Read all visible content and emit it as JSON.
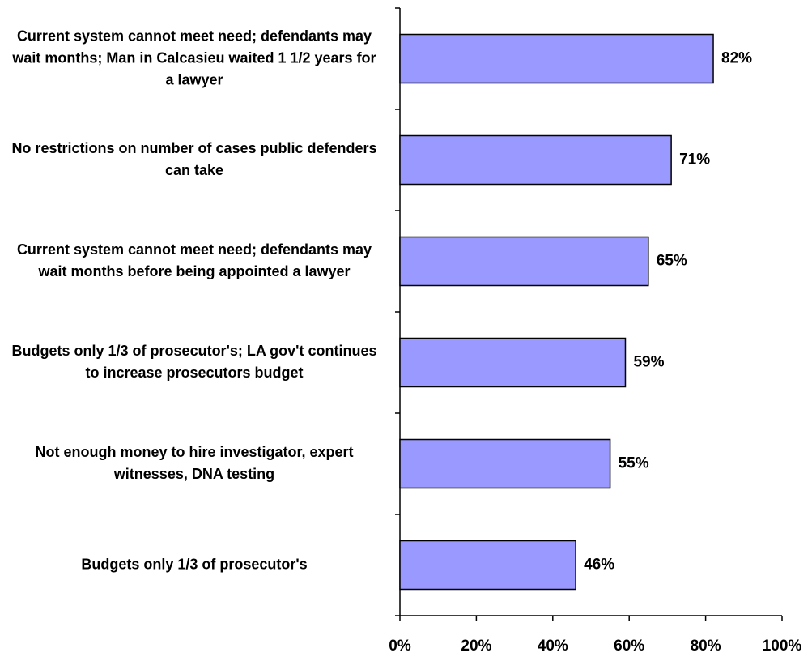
{
  "chart_data": {
    "type": "bar",
    "orientation": "horizontal",
    "categories": [
      "Current system cannot meet need; defendants may wait months; Man in Calcasieu waited 1 1/2 years for a lawyer",
      "No restrictions on number of cases public defenders can take",
      "Current system cannot meet need; defendants may wait months before being appointed a lawyer",
      "Budgets only 1/3 of prosecutor's; LA gov't continues to increase prosecutors budget",
      "Not enough money to hire investigator, expert witnesses, DNA testing",
      "Budgets only 1/3 of prosecutor's"
    ],
    "values": [
      82,
      71,
      65,
      59,
      55,
      46
    ],
    "value_labels": [
      "82%",
      "71%",
      "65%",
      "59%",
      "55%",
      "46%"
    ],
    "color": "#9999ff",
    "xlim": [
      0,
      100
    ],
    "xticks": [
      {
        "value": 0,
        "label": "0%"
      },
      {
        "value": 20,
        "label": "20%"
      },
      {
        "value": 40,
        "label": "40%"
      },
      {
        "value": 60,
        "label": "60%"
      },
      {
        "value": 80,
        "label": "80%"
      },
      {
        "value": 100,
        "label": "100%"
      }
    ],
    "grid": false
  }
}
